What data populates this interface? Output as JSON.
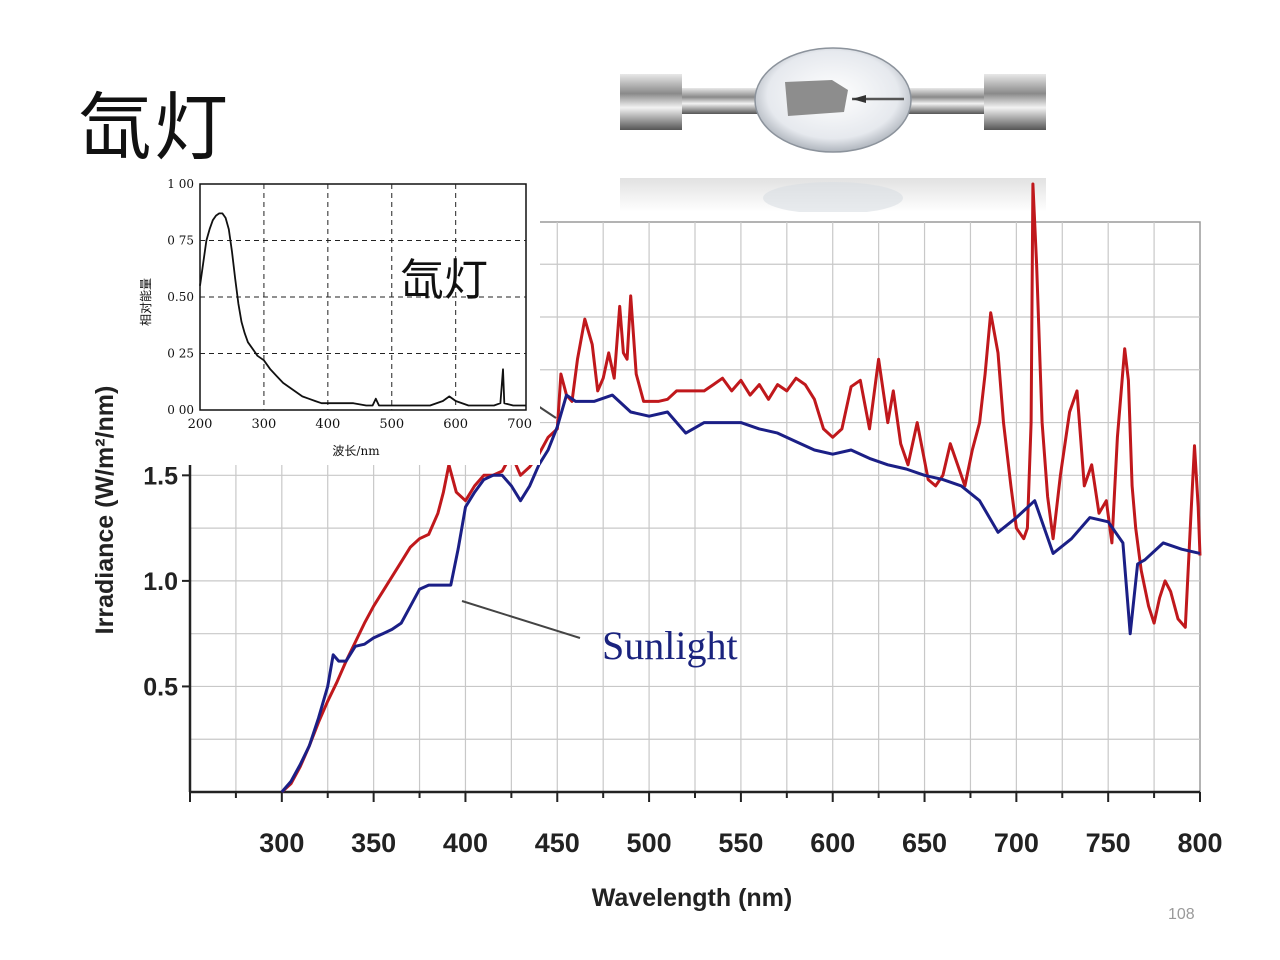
{
  "slide": {
    "title": "氙灯",
    "page_number": "108"
  },
  "photo": {
    "icon": "xenon-lamp-bulb-photo"
  },
  "colors": {
    "xenon_series": "#c0181c",
    "sunlight_series": "#1b1f86",
    "grid": "#c8c8c8",
    "inset_line": "#111111"
  },
  "chart_data": [
    {
      "type": "line",
      "xlabel": "Wavelength (nm)",
      "ylabel": "Irradiance (W/m²/nm)",
      "xlim": [
        250,
        800
      ],
      "ylim": [
        0,
        2.7
      ],
      "x_ticks": [
        "300",
        "350",
        "400",
        "450",
        "500",
        "550",
        "600",
        "650",
        "700",
        "750",
        "800"
      ],
      "y_ticks": [
        {
          "v": 0.5,
          "label": "0.5"
        },
        {
          "v": 1.0,
          "label": "1.0"
        },
        {
          "v": 1.5,
          "label": "1.5"
        }
      ],
      "grid": true,
      "series": [
        {
          "name": "",
          "color": "#c0181c",
          "points": [
            [
              300,
              0
            ],
            [
              305,
              0.04
            ],
            [
              310,
              0.12
            ],
            [
              315,
              0.22
            ],
            [
              320,
              0.33
            ],
            [
              325,
              0.43
            ],
            [
              330,
              0.52
            ],
            [
              335,
              0.62
            ],
            [
              340,
              0.71
            ],
            [
              345,
              0.8
            ],
            [
              350,
              0.88
            ],
            [
              355,
              0.95
            ],
            [
              360,
              1.02
            ],
            [
              365,
              1.09
            ],
            [
              370,
              1.16
            ],
            [
              375,
              1.2
            ],
            [
              380,
              1.22
            ],
            [
              385,
              1.32
            ],
            [
              388,
              1.42
            ],
            [
              391,
              1.55
            ],
            [
              395,
              1.42
            ],
            [
              400,
              1.38
            ],
            [
              405,
              1.45
            ],
            [
              410,
              1.5
            ],
            [
              415,
              1.5
            ],
            [
              420,
              1.52
            ],
            [
              425,
              1.6
            ],
            [
              430,
              1.5
            ],
            [
              435,
              1.54
            ],
            [
              440,
              1.6
            ],
            [
              445,
              1.68
            ],
            [
              450,
              1.72
            ],
            [
              452,
              1.98
            ],
            [
              455,
              1.88
            ],
            [
              458,
              1.85
            ],
            [
              461,
              2.05
            ],
            [
              465,
              2.24
            ],
            [
              469,
              2.12
            ],
            [
              472,
              1.9
            ],
            [
              475,
              1.96
            ],
            [
              478,
              2.08
            ],
            [
              481,
              1.96
            ],
            [
              484,
              2.3
            ],
            [
              486,
              2.08
            ],
            [
              488,
              2.05
            ],
            [
              490,
              2.35
            ],
            [
              493,
              1.98
            ],
            [
              497,
              1.85
            ],
            [
              505,
              1.85
            ],
            [
              510,
              1.86
            ],
            [
              515,
              1.9
            ],
            [
              520,
              1.9
            ],
            [
              525,
              1.9
            ],
            [
              530,
              1.9
            ],
            [
              535,
              1.93
            ],
            [
              540,
              1.96
            ],
            [
              545,
              1.9
            ],
            [
              550,
              1.95
            ],
            [
              555,
              1.88
            ],
            [
              560,
              1.93
            ],
            [
              565,
              1.86
            ],
            [
              570,
              1.93
            ],
            [
              575,
              1.9
            ],
            [
              580,
              1.96
            ],
            [
              585,
              1.93
            ],
            [
              590,
              1.86
            ],
            [
              595,
              1.72
            ],
            [
              600,
              1.68
            ],
            [
              605,
              1.72
            ],
            [
              610,
              1.92
            ],
            [
              615,
              1.95
            ],
            [
              620,
              1.72
            ],
            [
              625,
              2.05
            ],
            [
              630,
              1.75
            ],
            [
              633,
              1.9
            ],
            [
              637,
              1.65
            ],
            [
              641,
              1.55
            ],
            [
              646,
              1.75
            ],
            [
              652,
              1.48
            ],
            [
              656,
              1.45
            ],
            [
              660,
              1.5
            ],
            [
              664,
              1.65
            ],
            [
              668,
              1.55
            ],
            [
              672,
              1.45
            ],
            [
              676,
              1.62
            ],
            [
              680,
              1.75
            ],
            [
              683,
              1.98
            ],
            [
              686,
              2.27
            ],
            [
              690,
              2.08
            ],
            [
              693,
              1.75
            ],
            [
              697,
              1.45
            ],
            [
              700,
              1.25
            ],
            [
              704,
              1.2
            ],
            [
              706,
              1.25
            ],
            [
              708,
              1.75
            ],
            [
              709,
              2.88
            ],
            [
              711,
              2.5
            ],
            [
              714,
              1.75
            ],
            [
              717,
              1.4
            ],
            [
              720,
              1.2
            ],
            [
              724,
              1.5
            ],
            [
              729,
              1.8
            ],
            [
              733,
              1.9
            ],
            [
              737,
              1.45
            ],
            [
              741,
              1.55
            ],
            [
              745,
              1.32
            ],
            [
              749,
              1.38
            ],
            [
              752,
              1.18
            ],
            [
              755,
              1.68
            ],
            [
              759,
              2.1
            ],
            [
              761,
              1.95
            ],
            [
              763,
              1.45
            ],
            [
              765,
              1.25
            ],
            [
              768,
              1.05
            ],
            [
              772,
              0.88
            ],
            [
              775,
              0.8
            ],
            [
              778,
              0.92
            ],
            [
              781,
              1.0
            ],
            [
              784,
              0.95
            ],
            [
              788,
              0.82
            ],
            [
              792,
              0.78
            ],
            [
              795,
              1.3
            ],
            [
              797,
              1.64
            ],
            [
              799,
              1.35
            ],
            [
              800,
              1.12
            ]
          ]
        },
        {
          "name": "Sunlight",
          "color": "#1b1f86",
          "points": [
            [
              300,
              0
            ],
            [
              305,
              0.05
            ],
            [
              310,
              0.13
            ],
            [
              315,
              0.22
            ],
            [
              320,
              0.35
            ],
            [
              325,
              0.5
            ],
            [
              328,
              0.65
            ],
            [
              331,
              0.62
            ],
            [
              335,
              0.62
            ],
            [
              340,
              0.69
            ],
            [
              345,
              0.7
            ],
            [
              350,
              0.73
            ],
            [
              355,
              0.75
            ],
            [
              360,
              0.77
            ],
            [
              365,
              0.8
            ],
            [
              370,
              0.88
            ],
            [
              375,
              0.96
            ],
            [
              380,
              0.98
            ],
            [
              385,
              0.98
            ],
            [
              389,
              0.98
            ],
            [
              392,
              0.98
            ],
            [
              396,
              1.15
            ],
            [
              400,
              1.35
            ],
            [
              405,
              1.42
            ],
            [
              410,
              1.48
            ],
            [
              415,
              1.5
            ],
            [
              420,
              1.5
            ],
            [
              425,
              1.45
            ],
            [
              430,
              1.38
            ],
            [
              435,
              1.45
            ],
            [
              440,
              1.55
            ],
            [
              445,
              1.62
            ],
            [
              450,
              1.73
            ],
            [
              455,
              1.88
            ],
            [
              460,
              1.85
            ],
            [
              470,
              1.85
            ],
            [
              480,
              1.88
            ],
            [
              490,
              1.8
            ],
            [
              500,
              1.78
            ],
            [
              510,
              1.8
            ],
            [
              520,
              1.7
            ],
            [
              530,
              1.75
            ],
            [
              540,
              1.75
            ],
            [
              550,
              1.75
            ],
            [
              560,
              1.72
            ],
            [
              570,
              1.7
            ],
            [
              580,
              1.66
            ],
            [
              590,
              1.62
            ],
            [
              600,
              1.6
            ],
            [
              610,
              1.62
            ],
            [
              620,
              1.58
            ],
            [
              630,
              1.55
            ],
            [
              640,
              1.53
            ],
            [
              650,
              1.5
            ],
            [
              660,
              1.48
            ],
            [
              670,
              1.45
            ],
            [
              680,
              1.38
            ],
            [
              690,
              1.23
            ],
            [
              700,
              1.3
            ],
            [
              710,
              1.38
            ],
            [
              720,
              1.13
            ],
            [
              730,
              1.2
            ],
            [
              740,
              1.3
            ],
            [
              750,
              1.28
            ],
            [
              758,
              1.18
            ],
            [
              762,
              0.75
            ],
            [
              766,
              1.08
            ],
            [
              770,
              1.1
            ],
            [
              780,
              1.18
            ],
            [
              790,
              1.15
            ],
            [
              800,
              1.13
            ]
          ]
        }
      ]
    },
    {
      "type": "line",
      "series_label": "氙灯",
      "xlabel": "波长/nm",
      "ylabel": "相对能量",
      "xlim": [
        200,
        710
      ],
      "ylim": [
        0,
        1.0
      ],
      "x_ticks": [
        "200",
        "300",
        "400",
        "500",
        "600",
        "700"
      ],
      "y_ticks": [
        {
          "v": 0.0,
          "label": "0 00"
        },
        {
          "v": 0.25,
          "label": "0 25"
        },
        {
          "v": 0.5,
          "label": "0.50"
        },
        {
          "v": 0.75,
          "label": "0 75"
        },
        {
          "v": 1.0,
          "label": "1 00"
        }
      ],
      "grid": true,
      "series": [
        {
          "name": "",
          "color": "#111111",
          "points": [
            [
              200,
              0.55
            ],
            [
              205,
              0.65
            ],
            [
              210,
              0.75
            ],
            [
              215,
              0.8
            ],
            [
              220,
              0.84
            ],
            [
              225,
              0.86
            ],
            [
              230,
              0.87
            ],
            [
              235,
              0.87
            ],
            [
              240,
              0.85
            ],
            [
              245,
              0.8
            ],
            [
              250,
              0.7
            ],
            [
              255,
              0.58
            ],
            [
              260,
              0.47
            ],
            [
              265,
              0.39
            ],
            [
              270,
              0.34
            ],
            [
              275,
              0.3
            ],
            [
              280,
              0.28
            ],
            [
              290,
              0.24
            ],
            [
              300,
              0.22
            ],
            [
              310,
              0.18
            ],
            [
              320,
              0.15
            ],
            [
              330,
              0.12
            ],
            [
              340,
              0.1
            ],
            [
              350,
              0.08
            ],
            [
              360,
              0.06
            ],
            [
              370,
              0.05
            ],
            [
              380,
              0.04
            ],
            [
              390,
              0.03
            ],
            [
              400,
              0.03
            ],
            [
              420,
              0.03
            ],
            [
              440,
              0.03
            ],
            [
              460,
              0.02
            ],
            [
              470,
              0.02
            ],
            [
              475,
              0.05
            ],
            [
              480,
              0.02
            ],
            [
              500,
              0.02
            ],
            [
              520,
              0.02
            ],
            [
              540,
              0.02
            ],
            [
              560,
              0.02
            ],
            [
              580,
              0.04
            ],
            [
              590,
              0.06
            ],
            [
              600,
              0.04
            ],
            [
              620,
              0.02
            ],
            [
              640,
              0.02
            ],
            [
              660,
              0.02
            ],
            [
              670,
              0.03
            ],
            [
              674,
              0.18
            ],
            [
              676,
              0.03
            ],
            [
              690,
              0.02
            ],
            [
              710,
              0.02
            ]
          ]
        }
      ]
    }
  ]
}
